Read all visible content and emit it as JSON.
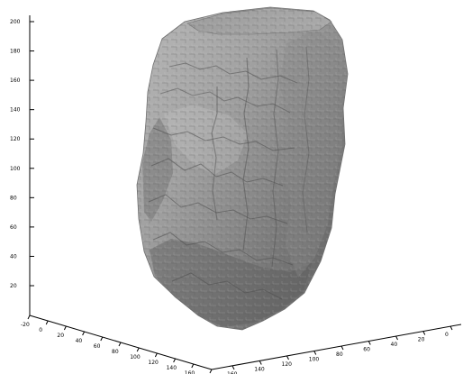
{
  "chart_data": {
    "type": "3d-surface-render",
    "z_axis_ticks": [
      "200",
      "180",
      "160",
      "140",
      "120",
      "100",
      "80",
      "60",
      "40",
      "20"
    ],
    "x_axis_ticks": [
      "-20",
      "0",
      "20",
      "40",
      "60",
      "80",
      "100",
      "120",
      "140",
      "160",
      "180"
    ],
    "y_axis_ticks": [
      "160",
      "140",
      "120",
      "100",
      "80",
      "60",
      "40",
      "20",
      "0"
    ],
    "grid": false,
    "legend": "none"
  },
  "colors": {
    "background": "#ffffff",
    "axis": "#000000",
    "surface_dark": "#4f4f4f",
    "surface_mid": "#8f8f8f",
    "surface_light": "#c8c8c8"
  },
  "icons": {
    "surface": "rock-surface-mesh"
  }
}
